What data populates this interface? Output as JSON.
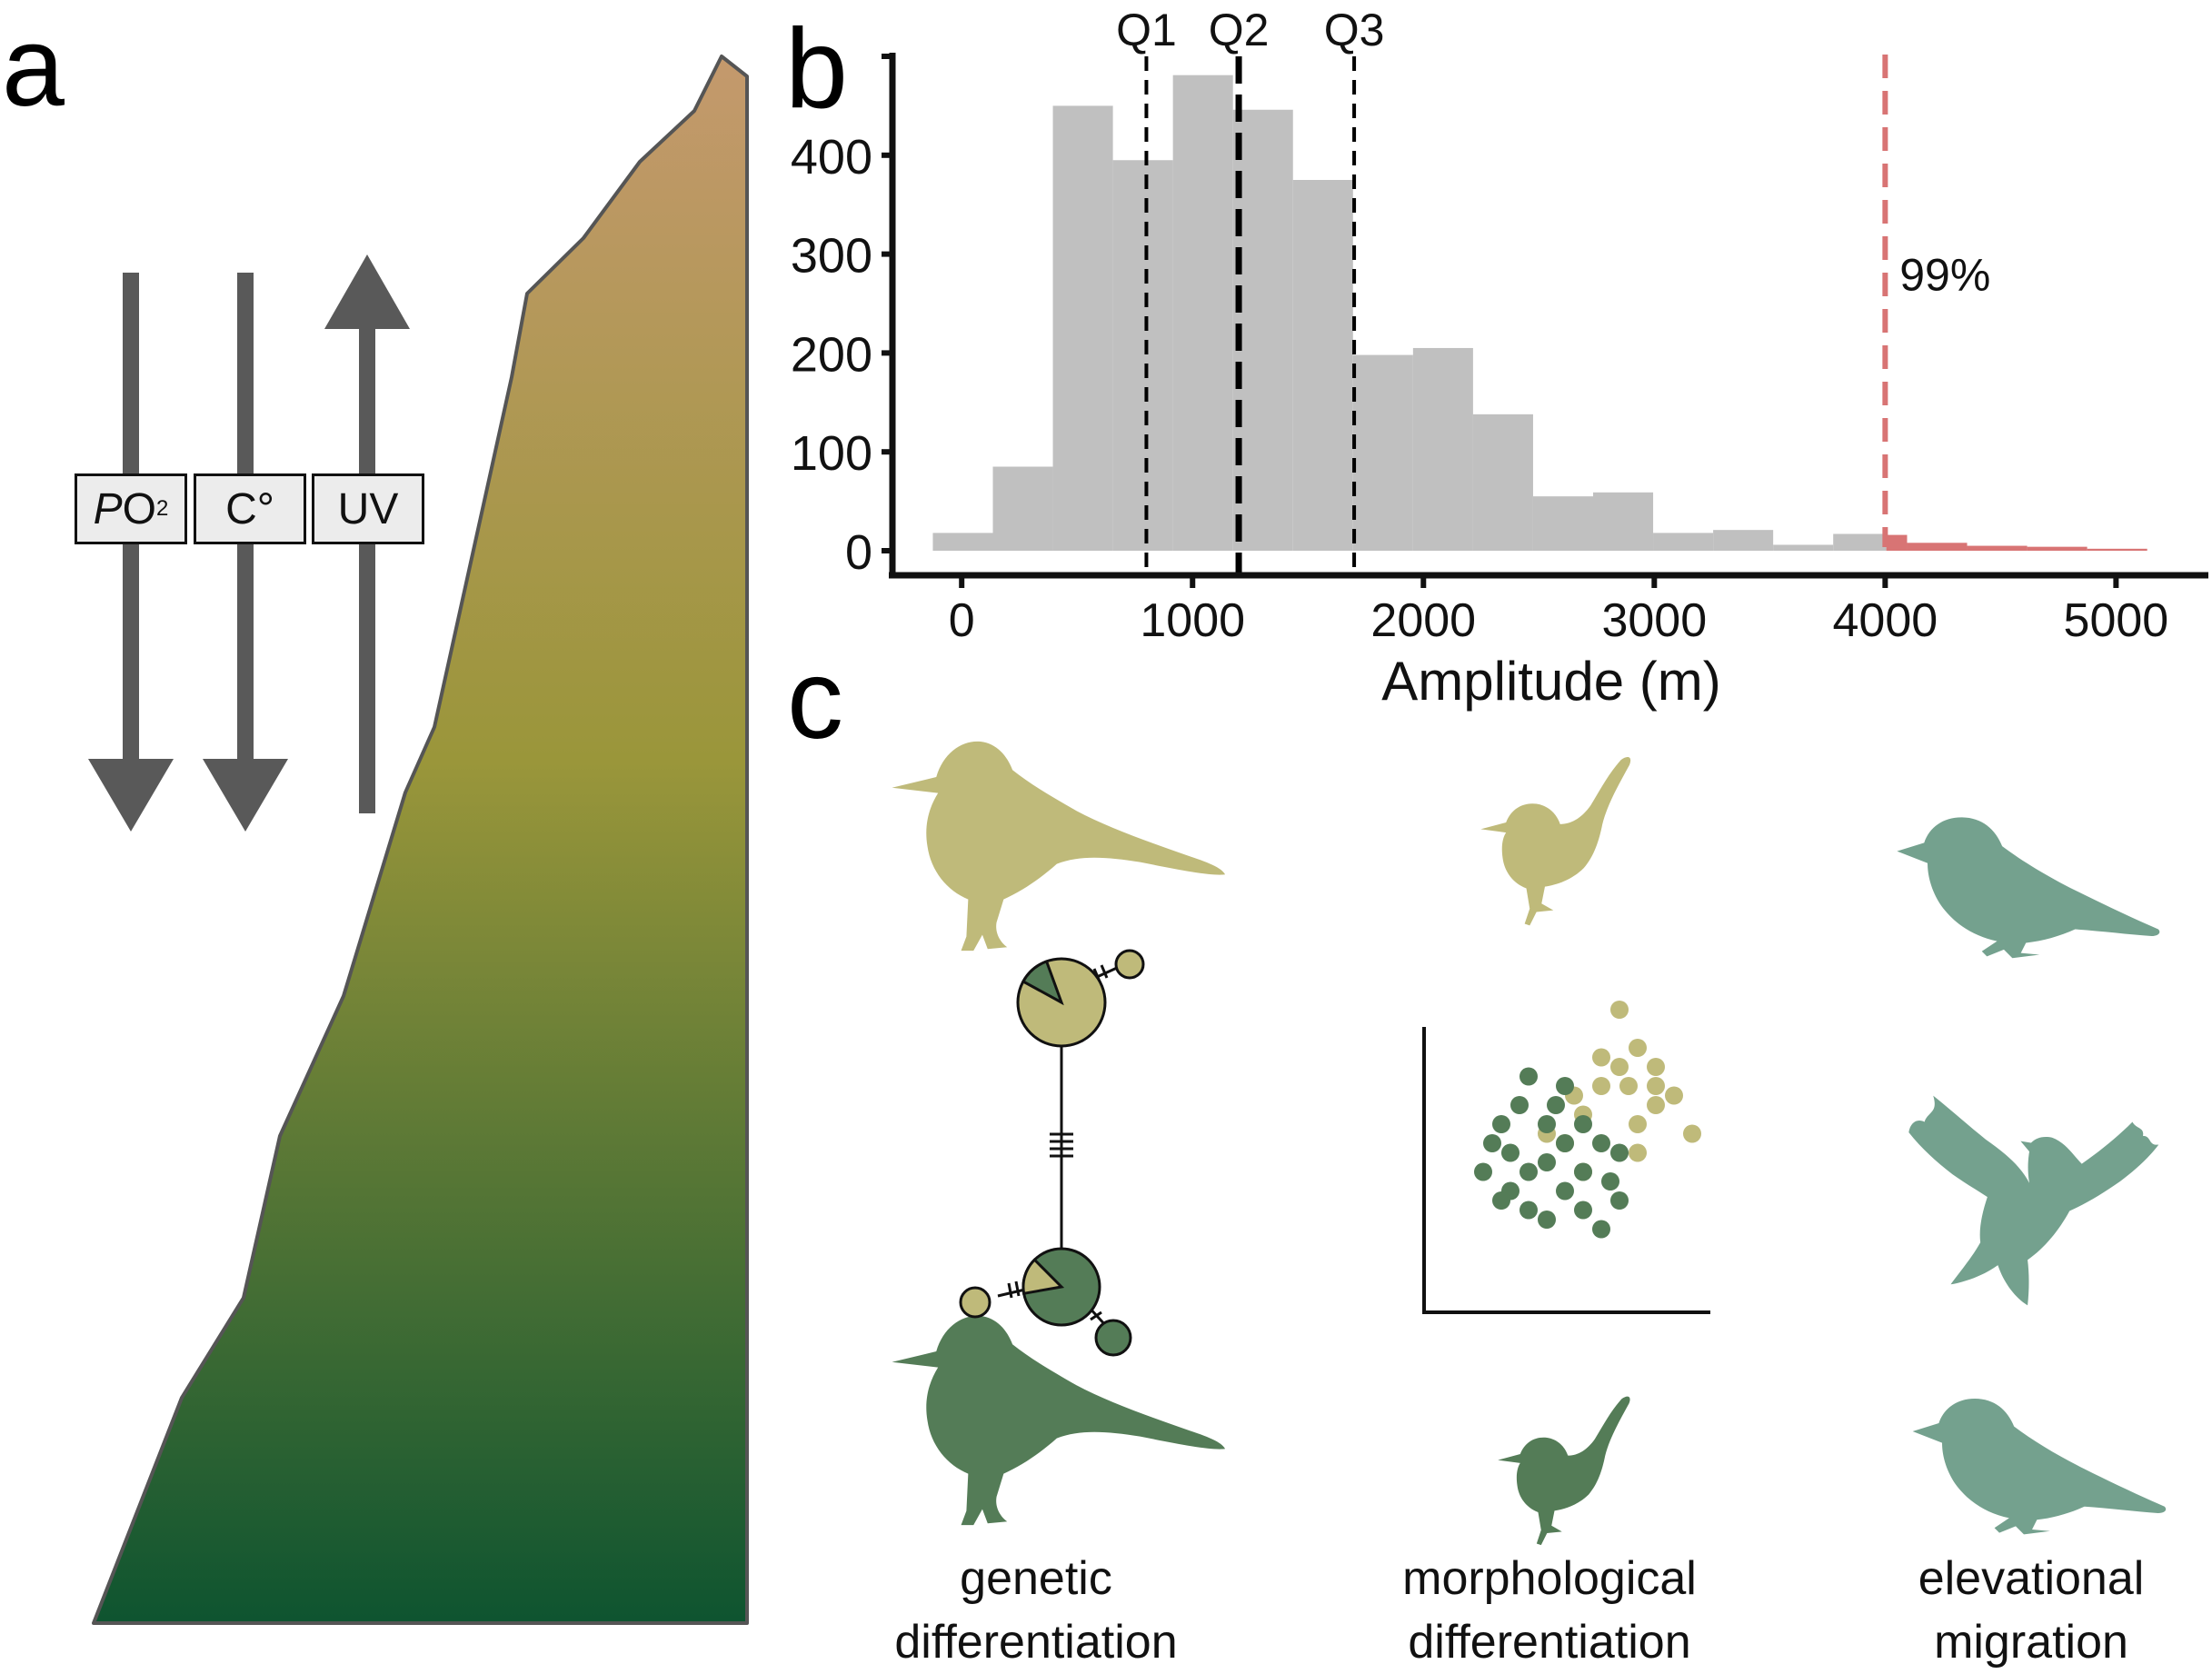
{
  "panels": {
    "a": "a",
    "b": "b",
    "c": "c"
  },
  "panel_a": {
    "box_po2": {
      "letter": "P",
      "base": "O",
      "sub": "2"
    },
    "box_temp": "C°",
    "box_uv": "UV",
    "colors": {
      "mountain_top": "#c4996d",
      "mountain_mid": "#9a963a",
      "mountain_bottom": "#0e5430",
      "arrow": "#595959"
    },
    "arrows": [
      "arrow-down-icon",
      "arrow-down-icon",
      "arrow-up-icon"
    ]
  },
  "chart_data": {
    "type": "bar",
    "subtype": "histogram",
    "xlabel": "Amplitude (m)",
    "ylabel": "",
    "xlim": [
      -300,
      5400
    ],
    "ylim": [
      0,
      500
    ],
    "xticks": [
      0,
      1000,
      2000,
      3000,
      4000,
      5000
    ],
    "yticks": [
      0,
      100,
      200,
      300,
      400
    ],
    "bins": [
      {
        "x0": -125,
        "x1": 135,
        "count": 18
      },
      {
        "x0": 135,
        "x1": 395,
        "count": 85
      },
      {
        "x0": 395,
        "x1": 655,
        "count": 450
      },
      {
        "x0": 655,
        "x1": 915,
        "count": 395
      },
      {
        "x0": 915,
        "x1": 1175,
        "count": 481
      },
      {
        "x0": 1175,
        "x1": 1435,
        "count": 446
      },
      {
        "x0": 1435,
        "x1": 1695,
        "count": 375
      },
      {
        "x0": 1695,
        "x1": 1955,
        "count": 198
      },
      {
        "x0": 1955,
        "x1": 2215,
        "count": 205
      },
      {
        "x0": 2215,
        "x1": 2475,
        "count": 138
      },
      {
        "x0": 2475,
        "x1": 2735,
        "count": 55
      },
      {
        "x0": 2735,
        "x1": 2995,
        "count": 59
      },
      {
        "x0": 2995,
        "x1": 3255,
        "count": 18
      },
      {
        "x0": 3255,
        "x1": 3515,
        "count": 21
      },
      {
        "x0": 3515,
        "x1": 3775,
        "count": 6
      },
      {
        "x0": 3775,
        "x1": 4005,
        "count": 17
      },
      {
        "x0": 4005,
        "x1": 4095,
        "count": 16,
        "highlight": true
      },
      {
        "x0": 4095,
        "x1": 4355,
        "count": 8,
        "highlight": true
      },
      {
        "x0": 4355,
        "x1": 4615,
        "count": 5,
        "highlight": true
      },
      {
        "x0": 4615,
        "x1": 4875,
        "count": 4,
        "highlight": true
      },
      {
        "x0": 4875,
        "x1": 5135,
        "count": 2,
        "highlight": true
      }
    ],
    "quartiles": [
      {
        "label": "Q1",
        "x": 800
      },
      {
        "label": "Q2",
        "x": 1200
      },
      {
        "label": "Q3",
        "x": 1700
      }
    ],
    "threshold": {
      "x": 4000,
      "label": "99%",
      "label_x": 4850,
      "label_y": 280
    },
    "colors": {
      "bar": "#c0c0c0",
      "highlight": "#d87474",
      "threshold_line": "#d87474",
      "quartile_line": "#000000"
    }
  },
  "panel_c": {
    "labels": {
      "genetic": [
        "genetic",
        "differentiation"
      ],
      "morphological": [
        "morphological",
        "differentiation"
      ],
      "elevational": [
        "elevational",
        "migration"
      ]
    },
    "colors": {
      "highland": "#bfba7a",
      "lowland": "#547c57",
      "migrant": "#74a18e"
    },
    "scatter_highland": [
      [
        8,
        9
      ],
      [
        9,
        7
      ],
      [
        7,
        6.5
      ],
      [
        8,
        6
      ],
      [
        10,
        6
      ],
      [
        8.5,
        5
      ],
      [
        10,
        5
      ],
      [
        7,
        5
      ],
      [
        5.5,
        4.5
      ],
      [
        11,
        4.5
      ],
      [
        10,
        4
      ],
      [
        6,
        3.5
      ],
      [
        9,
        3
      ],
      [
        4,
        2.5
      ],
      [
        12,
        2.5
      ],
      [
        5,
        2
      ],
      [
        9,
        1.5
      ],
      [
        6,
        0.5
      ]
    ],
    "scatter_lowland": [
      [
        3,
        5.5
      ],
      [
        5,
        5
      ],
      [
        2.5,
        4
      ],
      [
        4.5,
        4
      ],
      [
        1.5,
        3
      ],
      [
        4,
        3
      ],
      [
        6,
        3
      ],
      [
        1,
        2
      ],
      [
        5,
        2
      ],
      [
        7,
        2
      ],
      [
        2,
        1.5
      ],
      [
        8,
        1.5
      ],
      [
        4,
        1
      ],
      [
        0.5,
        0.5
      ],
      [
        3,
        0.5
      ],
      [
        6,
        0.5
      ],
      [
        7.5,
        0
      ],
      [
        2,
        -0.5
      ],
      [
        5,
        -0.5
      ],
      [
        3,
        -1.5
      ],
      [
        6,
        -1.5
      ],
      [
        8,
        -1
      ],
      [
        4,
        -2
      ],
      [
        7,
        -2.5
      ],
      [
        1.5,
        -1
      ]
    ]
  }
}
